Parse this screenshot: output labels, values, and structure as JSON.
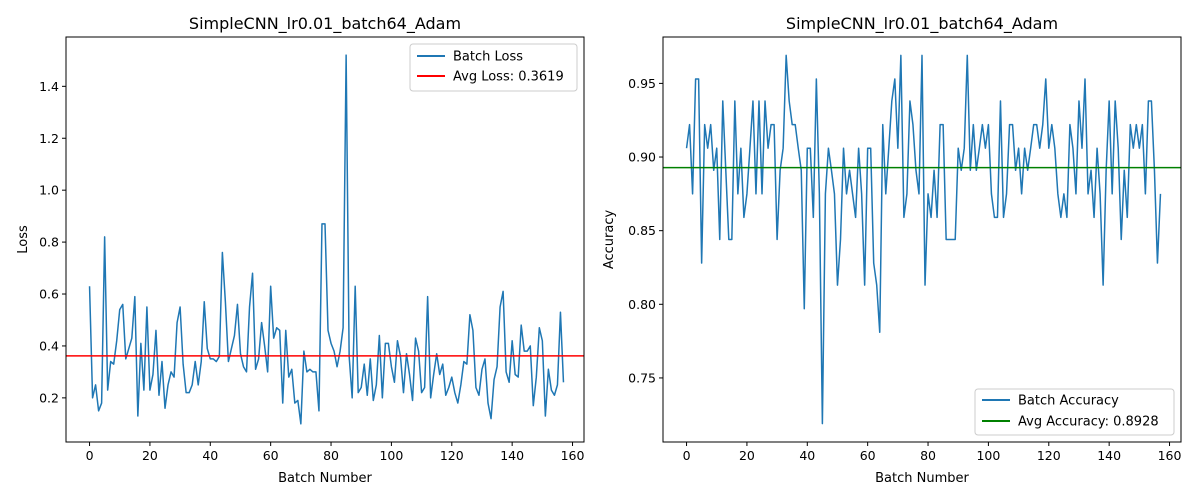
{
  "chart_data": [
    {
      "type": "line",
      "title": "SimpleCNN_lr0.01_batch64_Adam",
      "xlabel": "Batch Number",
      "ylabel": "Loss",
      "xlim": [
        -7.8,
        163.8
      ],
      "ylim": [
        0.03,
        1.59
      ],
      "xticks": [
        0,
        20,
        40,
        60,
        80,
        100,
        120,
        140,
        160
      ],
      "yticks": [
        0.2,
        0.4,
        0.6,
        0.8,
        1.0,
        1.2,
        1.4
      ],
      "ytick_labels": [
        "0.2",
        "0.4",
        "0.6",
        "0.8",
        "1.0",
        "1.2",
        "1.4"
      ],
      "legend_position": "upper right",
      "grid": false,
      "series": [
        {
          "name": "Batch Loss",
          "color": "#1f77b4",
          "values": [
            0.63,
            0.2,
            0.25,
            0.15,
            0.18,
            0.82,
            0.23,
            0.34,
            0.33,
            0.42,
            0.54,
            0.56,
            0.35,
            0.39,
            0.43,
            0.59,
            0.13,
            0.41,
            0.23,
            0.55,
            0.23,
            0.29,
            0.46,
            0.21,
            0.34,
            0.16,
            0.25,
            0.3,
            0.28,
            0.49,
            0.55,
            0.33,
            0.22,
            0.22,
            0.25,
            0.34,
            0.25,
            0.34,
            0.57,
            0.39,
            0.35,
            0.35,
            0.34,
            0.36,
            0.76,
            0.57,
            0.34,
            0.39,
            0.44,
            0.56,
            0.37,
            0.32,
            0.3,
            0.55,
            0.68,
            0.31,
            0.35,
            0.49,
            0.4,
            0.3,
            0.63,
            0.43,
            0.47,
            0.46,
            0.18,
            0.46,
            0.28,
            0.31,
            0.18,
            0.19,
            0.1,
            0.38,
            0.3,
            0.31,
            0.3,
            0.3,
            0.15,
            0.87,
            0.87,
            0.46,
            0.41,
            0.38,
            0.32,
            0.38,
            0.47,
            1.52,
            0.36,
            0.2,
            0.63,
            0.22,
            0.24,
            0.33,
            0.21,
            0.35,
            0.19,
            0.25,
            0.44,
            0.2,
            0.41,
            0.41,
            0.32,
            0.26,
            0.42,
            0.36,
            0.22,
            0.37,
            0.29,
            0.19,
            0.43,
            0.38,
            0.22,
            0.24,
            0.59,
            0.2,
            0.29,
            0.37,
            0.29,
            0.33,
            0.21,
            0.24,
            0.28,
            0.22,
            0.18,
            0.25,
            0.34,
            0.33,
            0.52,
            0.46,
            0.24,
            0.21,
            0.31,
            0.35,
            0.18,
            0.12,
            0.27,
            0.32,
            0.55,
            0.61,
            0.3,
            0.26,
            0.42,
            0.29,
            0.28,
            0.48,
            0.38,
            0.38,
            0.4,
            0.17,
            0.28,
            0.47,
            0.42,
            0.13,
            0.31,
            0.23,
            0.21,
            0.25,
            0.53,
            0.26
          ]
        }
      ],
      "hline": {
        "name": "Avg Loss: 0.3619",
        "value": 0.3619,
        "color": "#ff0000"
      }
    },
    {
      "type": "line",
      "title": "SimpleCNN_lr0.01_batch64_Adam",
      "xlabel": "Batch Number",
      "ylabel": "Accuracy",
      "xlim": [
        -7.8,
        163.8
      ],
      "ylim": [
        0.7065,
        0.9815
      ],
      "xticks": [
        0,
        20,
        40,
        60,
        80,
        100,
        120,
        140,
        160
      ],
      "yticks": [
        0.75,
        0.8,
        0.85,
        0.9,
        0.95
      ],
      "ytick_labels": [
        "0.75",
        "0.80",
        "0.85",
        "0.90",
        "0.95"
      ],
      "legend_position": "lower right",
      "grid": false,
      "series": [
        {
          "name": "Batch Accuracy",
          "color": "#1f77b4",
          "values": [
            0.906,
            0.922,
            0.875,
            0.953,
            0.953,
            0.828,
            0.922,
            0.906,
            0.922,
            0.891,
            0.906,
            0.844,
            0.938,
            0.891,
            0.844,
            0.844,
            0.938,
            0.875,
            0.906,
            0.859,
            0.875,
            0.906,
            0.938,
            0.875,
            0.938,
            0.875,
            0.938,
            0.906,
            0.922,
            0.922,
            0.844,
            0.891,
            0.906,
            0.969,
            0.938,
            0.922,
            0.922,
            0.906,
            0.891,
            0.797,
            0.906,
            0.906,
            0.859,
            0.953,
            0.875,
            0.719,
            0.875,
            0.906,
            0.891,
            0.875,
            0.813,
            0.844,
            0.906,
            0.875,
            0.891,
            0.875,
            0.859,
            0.906,
            0.875,
            0.813,
            0.906,
            0.906,
            0.828,
            0.813,
            0.781,
            0.922,
            0.875,
            0.906,
            0.938,
            0.953,
            0.906,
            0.969,
            0.859,
            0.875,
            0.938,
            0.922,
            0.891,
            0.875,
            0.969,
            0.813,
            0.875,
            0.859,
            0.891,
            0.859,
            0.922,
            0.922,
            0.844,
            0.844,
            0.844,
            0.844,
            0.906,
            0.891,
            0.906,
            0.969,
            0.891,
            0.922,
            0.891,
            0.906,
            0.922,
            0.906,
            0.922,
            0.875,
            0.859,
            0.859,
            0.938,
            0.859,
            0.875,
            0.922,
            0.922,
            0.891,
            0.906,
            0.875,
            0.906,
            0.891,
            0.906,
            0.922,
            0.922,
            0.906,
            0.922,
            0.953,
            0.906,
            0.922,
            0.906,
            0.875,
            0.859,
            0.875,
            0.859,
            0.922,
            0.906,
            0.875,
            0.938,
            0.906,
            0.953,
            0.875,
            0.891,
            0.859,
            0.906,
            0.875,
            0.813,
            0.891,
            0.938,
            0.875,
            0.938,
            0.906,
            0.844,
            0.891,
            0.859,
            0.922,
            0.906,
            0.922,
            0.906,
            0.922,
            0.875,
            0.938,
            0.938,
            0.891,
            0.828,
            0.875
          ]
        }
      ],
      "hline": {
        "name": "Avg Accuracy: 0.8928",
        "value": 0.8928,
        "color": "#008000"
      }
    }
  ]
}
